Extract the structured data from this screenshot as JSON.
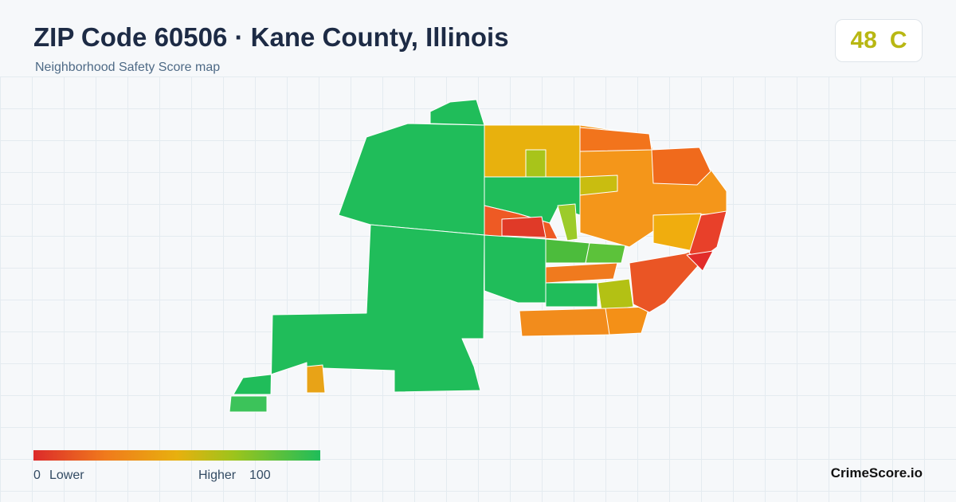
{
  "header": {
    "title": "ZIP Code 60506 · Kane County, Illinois",
    "subtitle": "Neighborhood Safety Score map"
  },
  "score": {
    "value": 48,
    "grade": "C"
  },
  "legend": {
    "min": 0,
    "min_label": "Lower",
    "max_label": "Higher",
    "max": 100
  },
  "brand": "CrimeScore.io"
}
